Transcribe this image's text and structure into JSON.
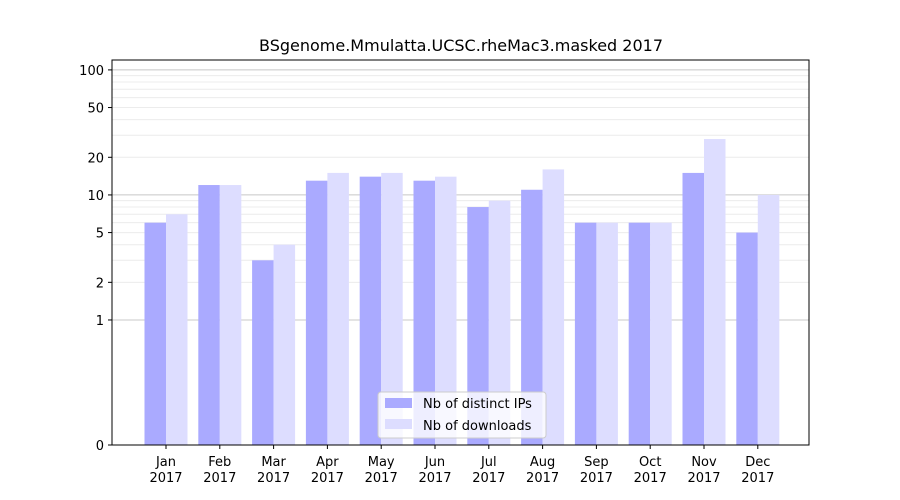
{
  "chart_data": {
    "type": "bar",
    "title": "BSgenome.Mmulatta.UCSC.rheMac3.masked 2017",
    "xlabel": "",
    "ylabel": "",
    "yscale": "symlog",
    "ylim": [
      0,
      120
    ],
    "yticks": [
      0,
      1,
      2,
      5,
      10,
      20,
      50,
      100
    ],
    "ytick_labels": [
      "0",
      "1",
      "2",
      "5",
      "10",
      "20",
      "50",
      "100"
    ],
    "categories": [
      "Jan\n2017",
      "Feb\n2017",
      "Mar\n2017",
      "Apr\n2017",
      "May\n2017",
      "Jun\n2017",
      "Jul\n2017",
      "Aug\n2017",
      "Sep\n2017",
      "Oct\n2017",
      "Nov\n2017",
      "Dec\n2017"
    ],
    "category_lines": [
      [
        "Jan",
        "2017"
      ],
      [
        "Feb",
        "2017"
      ],
      [
        "Mar",
        "2017"
      ],
      [
        "Apr",
        "2017"
      ],
      [
        "May",
        "2017"
      ],
      [
        "Jun",
        "2017"
      ],
      [
        "Jul",
        "2017"
      ],
      [
        "Aug",
        "2017"
      ],
      [
        "Sep",
        "2017"
      ],
      [
        "Oct",
        "2017"
      ],
      [
        "Nov",
        "2017"
      ],
      [
        "Dec",
        "2017"
      ]
    ],
    "series": [
      {
        "name": "Nb of distinct IPs",
        "color": "#aaaaff",
        "values": [
          6,
          12,
          3,
          13,
          14,
          13,
          8,
          11,
          6,
          6,
          15,
          5
        ]
      },
      {
        "name": "Nb of downloads",
        "color": "#ddddff",
        "values": [
          7,
          12,
          4,
          15,
          15,
          14,
          9,
          16,
          6,
          6,
          28,
          10
        ]
      }
    ],
    "grid": true,
    "legend_position": "bottom-center"
  }
}
